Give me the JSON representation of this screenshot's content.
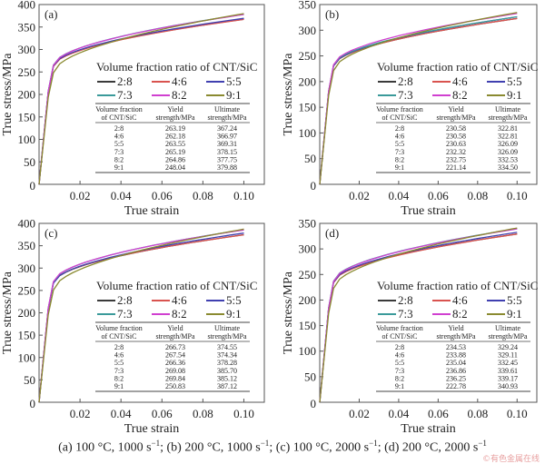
{
  "chart_data": [
    {
      "type": "line",
      "panel_label": "(a)",
      "xlabel": "True strain",
      "ylabel": "True stress/MPa",
      "xlim": [
        0,
        0.11
      ],
      "ylim": [
        0,
        400
      ],
      "xticks": [
        "0.02",
        "0.04",
        "0.06",
        "0.08",
        "0.10"
      ],
      "yticks": [
        "0",
        "50",
        "100",
        "150",
        "200",
        "250",
        "300",
        "350",
        "400"
      ],
      "legend_title": "Volume fraction ratio of CNT/SiC",
      "series_names": [
        "2:8",
        "4:6",
        "5:5",
        "7:3",
        "8:2",
        "9:1"
      ],
      "table": {
        "headers": [
          [
            "Volume fraction",
            "of CNT/SiC"
          ],
          [
            "Yield",
            "strength/MPa"
          ],
          [
            "Ultimate",
            "strength/MPa"
          ]
        ],
        "rows": [
          [
            "2:8",
            "263.19",
            "367.24"
          ],
          [
            "4:6",
            "262.18",
            "366.97"
          ],
          [
            "5:5",
            "263.55",
            "369.31"
          ],
          [
            "7:3",
            "265.19",
            "378.15"
          ],
          [
            "8:2",
            "264.86",
            "377.75"
          ],
          [
            "9:1",
            "248.04",
            "379.88"
          ]
        ]
      },
      "yield": [
        263.19,
        262.18,
        263.55,
        265.19,
        264.86,
        248.04
      ],
      "ultimate": [
        367.24,
        366.97,
        369.31,
        378.15,
        377.75,
        379.88
      ]
    },
    {
      "type": "line",
      "panel_label": "(b)",
      "xlabel": "True strain",
      "ylabel": "True stress/MPa",
      "xlim": [
        0,
        0.11
      ],
      "ylim": [
        0,
        350
      ],
      "xticks": [
        "0.02",
        "0.04",
        "0.06",
        "0.08",
        "0.10"
      ],
      "yticks": [
        "0",
        "50",
        "100",
        "150",
        "200",
        "250",
        "300",
        "350"
      ],
      "legend_title": "Volume fraction ratio of CNT/SiC",
      "series_names": [
        "2:8",
        "4:6",
        "5:5",
        "7:3",
        "8:2",
        "9:1"
      ],
      "table": {
        "headers": [
          [
            "Volume fraction",
            "of CNT/SiC"
          ],
          [
            "Yield",
            "strength/MPa"
          ],
          [
            "Ultimate",
            "strength/MPa"
          ]
        ],
        "rows": [
          [
            "2:8",
            "230.58",
            "322.81"
          ],
          [
            "4:6",
            "230.58",
            "322.81"
          ],
          [
            "5:5",
            "230.63",
            "326.09"
          ],
          [
            "7:3",
            "232.32",
            "326.09"
          ],
          [
            "8:2",
            "232.75",
            "332.53"
          ],
          [
            "9:1",
            "221.14",
            "334.50"
          ]
        ]
      },
      "yield": [
        230.58,
        230.58,
        230.63,
        232.32,
        232.75,
        221.14
      ],
      "ultimate": [
        322.81,
        322.81,
        326.09,
        326.09,
        332.53,
        334.5
      ]
    },
    {
      "type": "line",
      "panel_label": "(c)",
      "xlabel": "True strain",
      "ylabel": "True stress/MPa",
      "xlim": [
        0,
        0.11
      ],
      "ylim": [
        0,
        400
      ],
      "xticks": [
        "0.02",
        "0.04",
        "0.06",
        "0.08",
        "0.10"
      ],
      "yticks": [
        "0",
        "50",
        "100",
        "150",
        "200",
        "250",
        "300",
        "350",
        "400"
      ],
      "legend_title": "Volume fraction ratio of CNT/SiC",
      "series_names": [
        "2:8",
        "4:6",
        "5:5",
        "7:3",
        "8:2",
        "9:1"
      ],
      "table": {
        "headers": [
          [
            "Volume fraction",
            "of CNT/SiC"
          ],
          [
            "Yield",
            "strength/MPa"
          ],
          [
            "Ultimate",
            "strength/MPa"
          ]
        ],
        "rows": [
          [
            "2:8",
            "266.73",
            "374.55"
          ],
          [
            "4:6",
            "267.54",
            "374.34"
          ],
          [
            "5:5",
            "266.36",
            "378.28"
          ],
          [
            "7:3",
            "269.08",
            "385.70"
          ],
          [
            "8:2",
            "269.84",
            "385.12"
          ],
          [
            "9:1",
            "250.83",
            "387.12"
          ]
        ]
      },
      "yield": [
        266.73,
        267.54,
        266.36,
        269.08,
        269.84,
        250.83
      ],
      "ultimate": [
        374.55,
        374.34,
        378.28,
        385.7,
        385.12,
        387.12
      ]
    },
    {
      "type": "line",
      "panel_label": "(d)",
      "xlabel": "True strain",
      "ylabel": "True stress/MPa",
      "xlim": [
        0,
        0.11
      ],
      "ylim": [
        0,
        350
      ],
      "xticks": [
        "0.02",
        "0.04",
        "0.06",
        "0.08",
        "0.10"
      ],
      "yticks": [
        "0",
        "50",
        "100",
        "150",
        "200",
        "250",
        "300",
        "350"
      ],
      "legend_title": "Volume fraction ratio of CNT/SiC",
      "series_names": [
        "2:8",
        "4:6",
        "5:5",
        "7:3",
        "8:2",
        "9:1"
      ],
      "table": {
        "headers": [
          [
            "Volume fraction",
            "of CNT/SiC"
          ],
          [
            "Yield",
            "strength/MPa"
          ],
          [
            "Ultimate",
            "strength/MPa"
          ]
        ],
        "rows": [
          [
            "2:8",
            "234.53",
            "329.24"
          ],
          [
            "4:6",
            "233.88",
            "329.11"
          ],
          [
            "5:5",
            "235.04",
            "332.45"
          ],
          [
            "7:3",
            "236.86",
            "339.61"
          ],
          [
            "8:2",
            "236.25",
            "339.17"
          ],
          [
            "9:1",
            "222.78",
            "340.93"
          ]
        ]
      },
      "yield": [
        234.53,
        233.88,
        235.04,
        236.86,
        236.25,
        222.78
      ],
      "ultimate": [
        329.24,
        329.11,
        332.45,
        339.61,
        339.17,
        340.93
      ]
    }
  ],
  "series_colors": {
    "2:8": "#3a3a3a",
    "4:6": "#d9534f",
    "5:5": "#4040b0",
    "7:3": "#3a9a9a",
    "8:2": "#d040d0",
    "9:1": "#8a8a30"
  },
  "caption": {
    "a": "(a) 100 °C, 1000 s",
    "b": "; (b) 200 °C, 1000 s",
    "c": "; (c) 100 °C, 2000 s",
    "d": "; (d) 200 °C, 2000 s",
    "sup": "−1"
  },
  "watermark": "©有色金属在线"
}
